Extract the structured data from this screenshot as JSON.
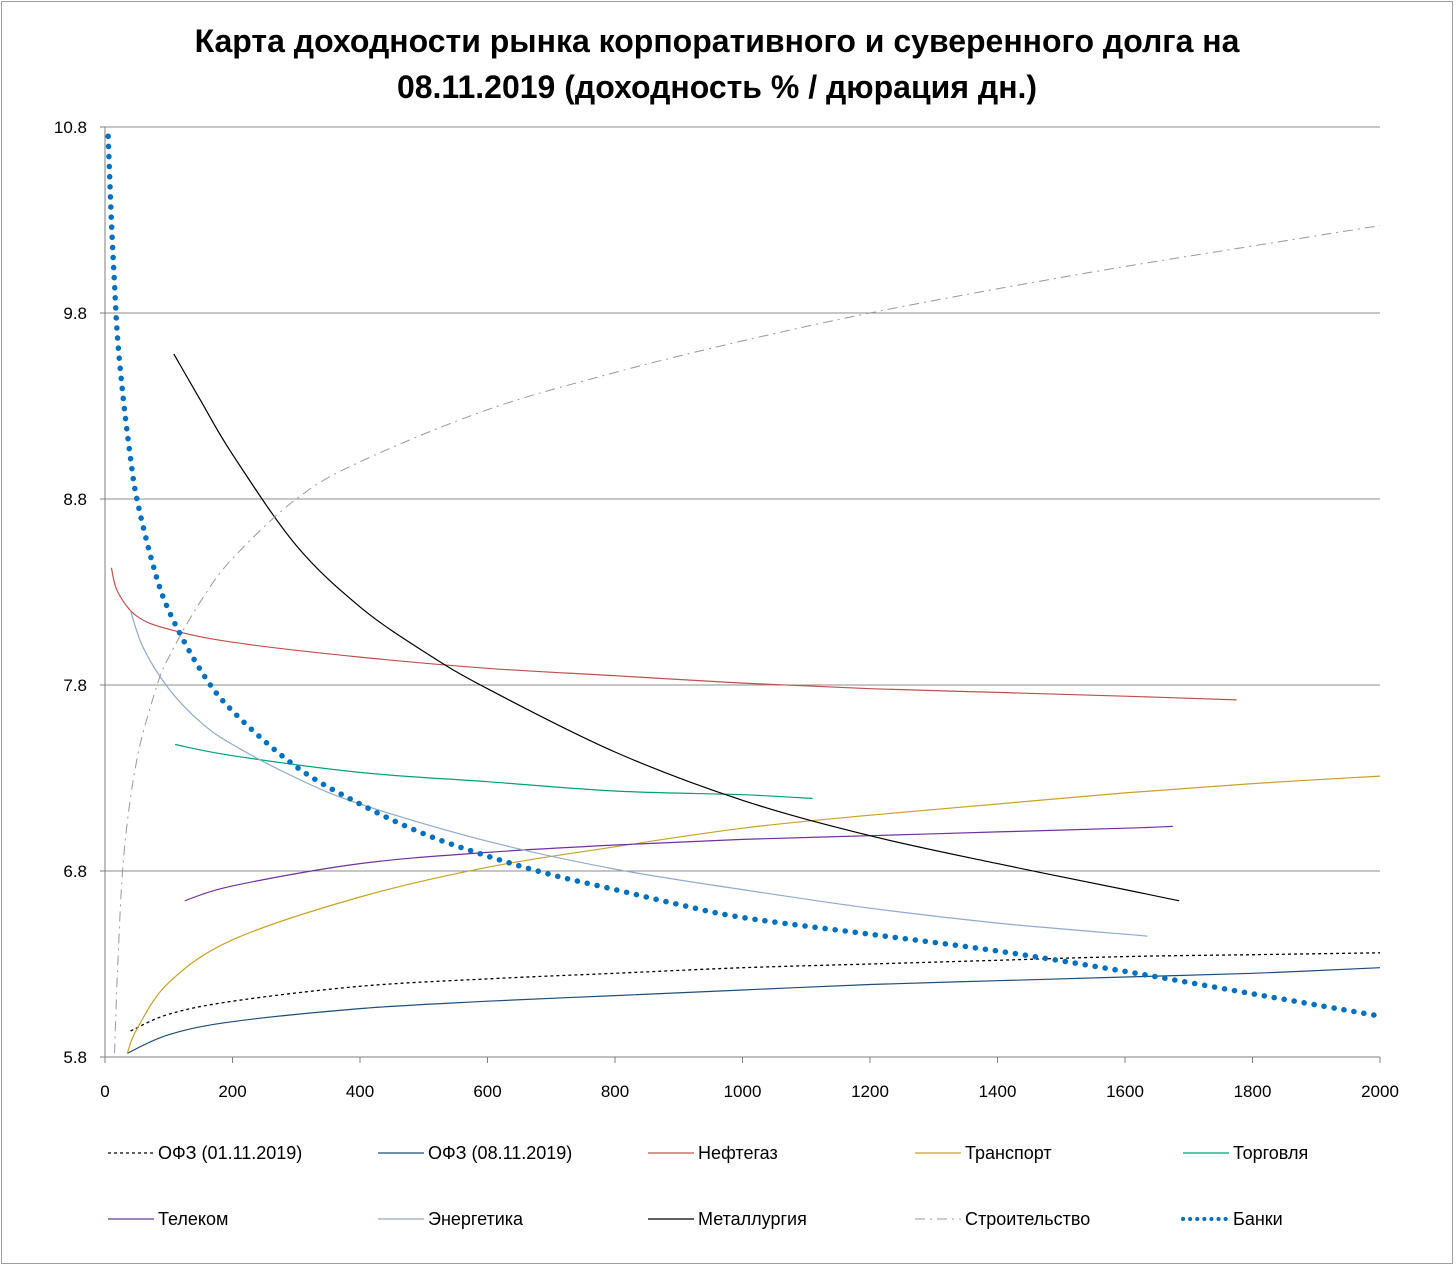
{
  "chart_data": {
    "type": "line",
    "title_line1": "Карта доходности рынка корпоративного и суверенного долга на",
    "title_line2": "08.11.2019 (доходность % / дюрация дн.)",
    "xlabel": "",
    "ylabel": "",
    "xlim": [
      0,
      2000
    ],
    "ylim": [
      5.8,
      10.8
    ],
    "x_ticks": [
      "0",
      "200",
      "400",
      "600",
      "800",
      "1000",
      "1200",
      "1400",
      "1600",
      "1800",
      "2000"
    ],
    "y_ticks": [
      "5.8",
      "6.8",
      "7.8",
      "8.8",
      "9.8",
      "10.8"
    ],
    "grid": "horizontal",
    "legend_position": "bottom",
    "series": [
      {
        "name": "ОФЗ (01.11.2019)",
        "color": "#000000",
        "style": "dotted",
        "points": [
          [
            40,
            5.94
          ],
          [
            100,
            6.03
          ],
          [
            200,
            6.1
          ],
          [
            400,
            6.18
          ],
          [
            600,
            6.22
          ],
          [
            800,
            6.25
          ],
          [
            1000,
            6.28
          ],
          [
            1200,
            6.3
          ],
          [
            1400,
            6.32
          ],
          [
            1600,
            6.34
          ],
          [
            1800,
            6.35
          ],
          [
            2000,
            6.36
          ]
        ]
      },
      {
        "name": "ОФЗ (08.11.2019)",
        "color": "#1f4e79",
        "style": "solid",
        "points": [
          [
            35,
            5.82
          ],
          [
            100,
            5.92
          ],
          [
            200,
            5.99
          ],
          [
            400,
            6.06
          ],
          [
            600,
            6.1
          ],
          [
            800,
            6.13
          ],
          [
            1000,
            6.16
          ],
          [
            1200,
            6.19
          ],
          [
            1400,
            6.21
          ],
          [
            1600,
            6.23
          ],
          [
            1800,
            6.25
          ],
          [
            2000,
            6.28
          ]
        ]
      },
      {
        "name": "Нефтегаз",
        "color": "#c0504d",
        "style": "solid",
        "points": [
          [
            10,
            8.43
          ],
          [
            20,
            8.3
          ],
          [
            50,
            8.17
          ],
          [
            100,
            8.1
          ],
          [
            200,
            8.03
          ],
          [
            400,
            7.95
          ],
          [
            600,
            7.89
          ],
          [
            800,
            7.85
          ],
          [
            1000,
            7.81
          ],
          [
            1200,
            7.78
          ],
          [
            1400,
            7.76
          ],
          [
            1600,
            7.74
          ],
          [
            1775,
            7.72
          ]
        ]
      },
      {
        "name": "Транспорт",
        "color": "#c9a227",
        "style": "solid",
        "points": [
          [
            35,
            5.82
          ],
          [
            50,
            5.95
          ],
          [
            100,
            6.2
          ],
          [
            200,
            6.43
          ],
          [
            400,
            6.66
          ],
          [
            600,
            6.82
          ],
          [
            800,
            6.93
          ],
          [
            1000,
            7.03
          ],
          [
            1200,
            7.1
          ],
          [
            1400,
            7.16
          ],
          [
            1600,
            7.22
          ],
          [
            1800,
            7.27
          ],
          [
            2000,
            7.31
          ]
        ]
      },
      {
        "name": "Торговля",
        "color": "#00a07a",
        "style": "solid",
        "points": [
          [
            110,
            7.48
          ],
          [
            200,
            7.42
          ],
          [
            400,
            7.33
          ],
          [
            600,
            7.28
          ],
          [
            800,
            7.23
          ],
          [
            1000,
            7.21
          ],
          [
            1110,
            7.19
          ]
        ]
      },
      {
        "name": "Телеком",
        "color": "#7030a0",
        "style": "solid",
        "points": [
          [
            125,
            6.64
          ],
          [
            200,
            6.72
          ],
          [
            400,
            6.84
          ],
          [
            600,
            6.9
          ],
          [
            800,
            6.94
          ],
          [
            1000,
            6.97
          ],
          [
            1200,
            6.99
          ],
          [
            1400,
            7.01
          ],
          [
            1600,
            7.03
          ],
          [
            1675,
            7.04
          ]
        ]
      },
      {
        "name": "Энергетика",
        "color": "#8eaacc",
        "style": "solid",
        "points": [
          [
            40,
            8.2
          ],
          [
            60,
            8.0
          ],
          [
            100,
            7.78
          ],
          [
            150,
            7.6
          ],
          [
            200,
            7.48
          ],
          [
            300,
            7.3
          ],
          [
            400,
            7.16
          ],
          [
            600,
            6.96
          ],
          [
            800,
            6.81
          ],
          [
            1000,
            6.7
          ],
          [
            1200,
            6.6
          ],
          [
            1400,
            6.52
          ],
          [
            1635,
            6.45
          ]
        ]
      },
      {
        "name": "Металлургия",
        "color": "#000000",
        "style": "solid",
        "points": [
          [
            108,
            9.58
          ],
          [
            150,
            9.33
          ],
          [
            200,
            9.04
          ],
          [
            300,
            8.55
          ],
          [
            400,
            8.22
          ],
          [
            500,
            7.98
          ],
          [
            600,
            7.78
          ],
          [
            800,
            7.44
          ],
          [
            1000,
            7.18
          ],
          [
            1200,
            6.99
          ],
          [
            1400,
            6.84
          ],
          [
            1600,
            6.7
          ],
          [
            1685,
            6.64
          ]
        ]
      },
      {
        "name": "Строительство",
        "color": "#999999",
        "style": "dashdot",
        "points": [
          [
            15,
            5.82
          ],
          [
            20,
            6.3
          ],
          [
            30,
            6.9
          ],
          [
            50,
            7.4
          ],
          [
            80,
            7.78
          ],
          [
            100,
            7.95
          ],
          [
            150,
            8.25
          ],
          [
            200,
            8.48
          ],
          [
            300,
            8.8
          ],
          [
            400,
            9.0
          ],
          [
            600,
            9.28
          ],
          [
            800,
            9.48
          ],
          [
            1000,
            9.65
          ],
          [
            1200,
            9.8
          ],
          [
            1400,
            9.93
          ],
          [
            1600,
            10.05
          ],
          [
            1800,
            10.16
          ],
          [
            2000,
            10.27
          ]
        ]
      },
      {
        "name": "Банки",
        "color": "#0070c0",
        "style": "dots",
        "points": [
          [
            5,
            10.75
          ],
          [
            10,
            10.3
          ],
          [
            15,
            9.95
          ],
          [
            20,
            9.65
          ],
          [
            30,
            9.3
          ],
          [
            40,
            9.02
          ],
          [
            50,
            8.8
          ],
          [
            75,
            8.45
          ],
          [
            100,
            8.2
          ],
          [
            150,
            7.88
          ],
          [
            200,
            7.66
          ],
          [
            300,
            7.36
          ],
          [
            400,
            7.16
          ],
          [
            500,
            7.0
          ],
          [
            600,
            6.88
          ],
          [
            700,
            6.78
          ],
          [
            800,
            6.7
          ],
          [
            900,
            6.62
          ],
          [
            1000,
            6.55
          ],
          [
            1200,
            6.46
          ],
          [
            1400,
            6.37
          ],
          [
            1600,
            6.26
          ],
          [
            1800,
            6.14
          ],
          [
            2000,
            6.02
          ]
        ]
      }
    ]
  }
}
